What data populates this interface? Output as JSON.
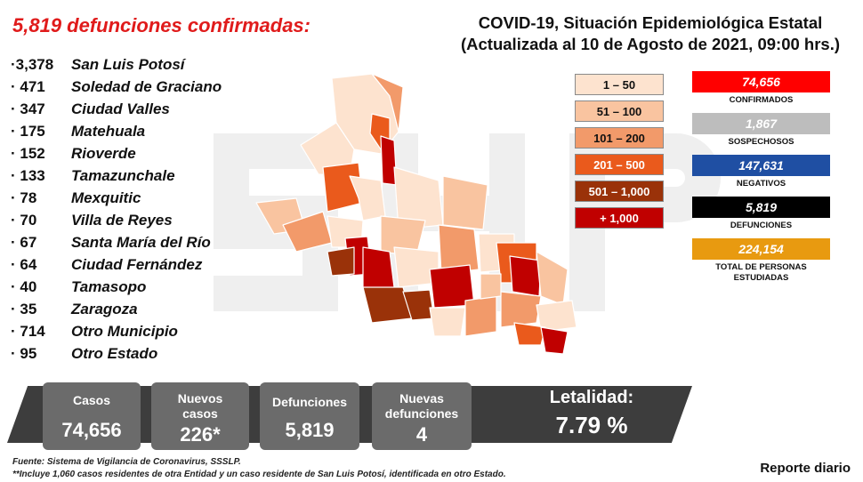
{
  "headline": "5,819 defunciones confirmadas:",
  "title": {
    "line1": "COVID-19, Situación Epidemiológica Estatal",
    "line2": "(Actualizada al 10 de Agosto de 2021, 09:00 hrs.)"
  },
  "deaths_by_municipality": [
    {
      "value": "·3,378",
      "name": "San Luis Potosí"
    },
    {
      "value": "· 471",
      "name": "Soledad de Graciano"
    },
    {
      "value": "· 347",
      "name": "Ciudad Valles"
    },
    {
      "value": "· 175",
      "name": "Matehuala"
    },
    {
      "value": "· 152",
      "name": "Rioverde"
    },
    {
      "value": "· 133",
      "name": "Tamazunchale"
    },
    {
      "value": "· 78",
      "name": "Mexquitic"
    },
    {
      "value": "· 70",
      "name": "Villa de Reyes"
    },
    {
      "value": "· 67",
      "name": "Santa María del Río"
    },
    {
      "value": "· 64",
      "name": "Ciudad Fernández"
    },
    {
      "value": "· 40",
      "name": "Tamasopo"
    },
    {
      "value": "· 35",
      "name": "Zaragoza"
    },
    {
      "value": "· 714",
      "name": "Otro Municipio"
    },
    {
      "value": "· 95",
      "name": "Otro Estado"
    }
  ],
  "legend": [
    {
      "label": "1 – 50",
      "color": "#fde3cf",
      "text_color": "#111111"
    },
    {
      "label": "51 – 100",
      "color": "#f9c4a0",
      "text_color": "#111111"
    },
    {
      "label": "101 – 200",
      "color": "#f29a6a",
      "text_color": "#111111"
    },
    {
      "label": "201 – 500",
      "color": "#ea5a1c",
      "text_color": "#ffffff"
    },
    {
      "label": "501 – 1,000",
      "color": "#9a3209",
      "text_color": "#ffffff"
    },
    {
      "label": "+ 1,000",
      "color": "#c00000",
      "text_color": "#ffffff"
    }
  ],
  "stats": [
    {
      "value": "74,656",
      "label": "CONFIRMADOS",
      "color": "#ff0000"
    },
    {
      "value": "1,867",
      "label": "SOSPECHOSOS",
      "color": "#bdbdbd"
    },
    {
      "value": "147,631",
      "label": "NEGATIVOS",
      "color": "#1f4fa3"
    },
    {
      "value": "5,819",
      "label": "DEFUNCIONES",
      "color": "#000000"
    },
    {
      "value": "224,154",
      "label": "TOTAL DE PERSONAS ESTUDIADAS",
      "color": "#e89a10"
    }
  ],
  "summary": {
    "cases_label": "Casos",
    "cases_value": "74,656",
    "new_cases_label": "Nuevos casos",
    "new_cases_value": "226*",
    "deaths_label": "Defunciones",
    "deaths_value": "5,819",
    "new_deaths_label": "Nuevas defunciones",
    "new_deaths_value": "4",
    "letality_label": "Letalidad:",
    "letality_value": "7.79 %"
  },
  "source": "Fuente: Sistema de Vigilancia de Coronavirus, SSSLP.",
  "note": "**Incluye 1,060 casos residentes de otra Entidad y un caso residente de San Luis Potosí, identificada en otro Estado.",
  "report_label": "Reporte diario",
  "map_colors": {
    "light": "#fde3cf",
    "peach": "#f9c4a0",
    "salmon": "#f29a6a",
    "orange": "#ea5a1c",
    "brown": "#9a3209",
    "red": "#c00000",
    "border": "#ffffff"
  }
}
